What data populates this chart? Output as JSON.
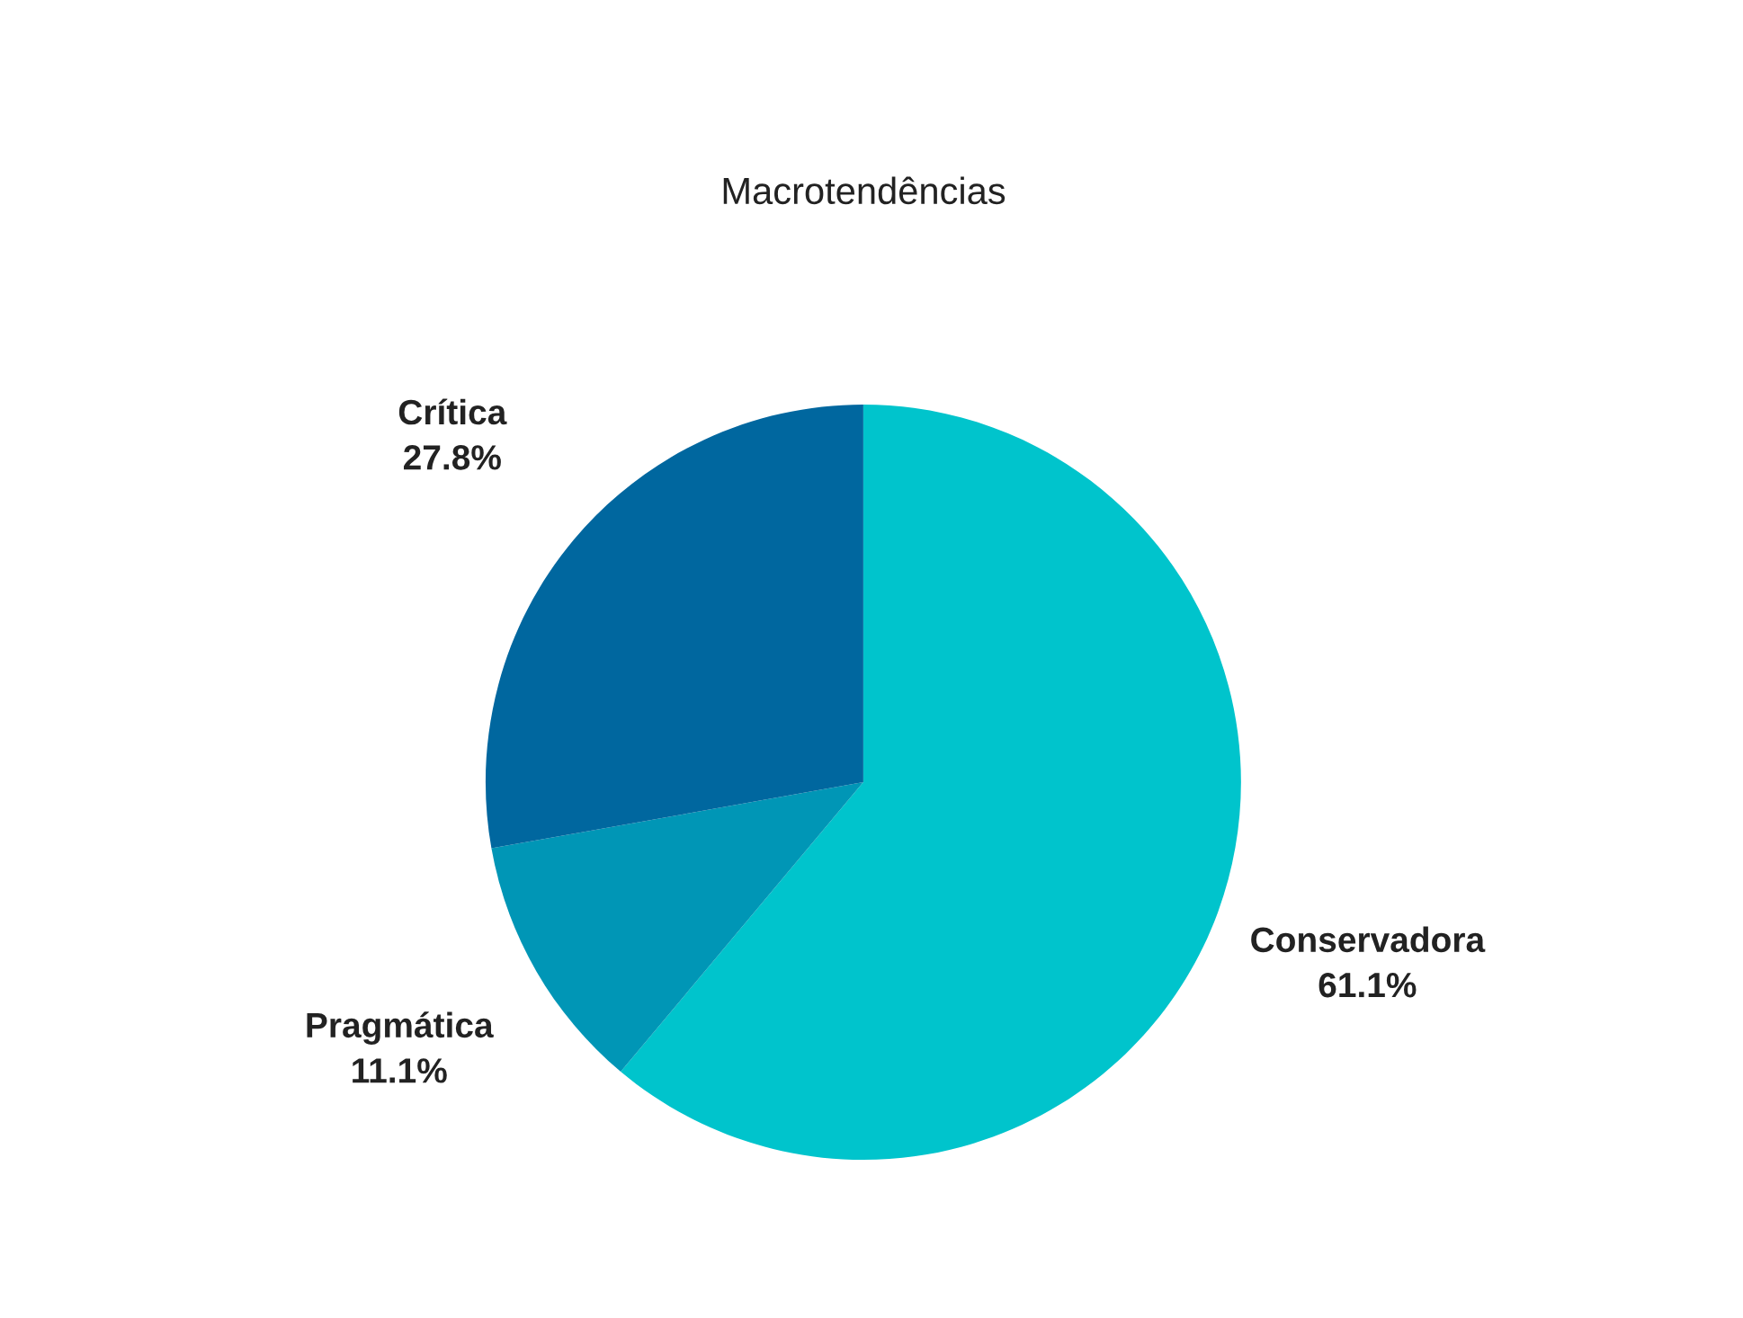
{
  "chart_data": {
    "type": "pie",
    "title": "Macrotendências",
    "categories": [
      "Conservadora",
      "Pragmática",
      "Crítica"
    ],
    "values": [
      61.1,
      11.1,
      27.8
    ],
    "colors": [
      "#00c4cc",
      "#0096b6",
      "#00679f"
    ],
    "value_labels": [
      "61.1%",
      "11.1%",
      "27.8%"
    ]
  }
}
